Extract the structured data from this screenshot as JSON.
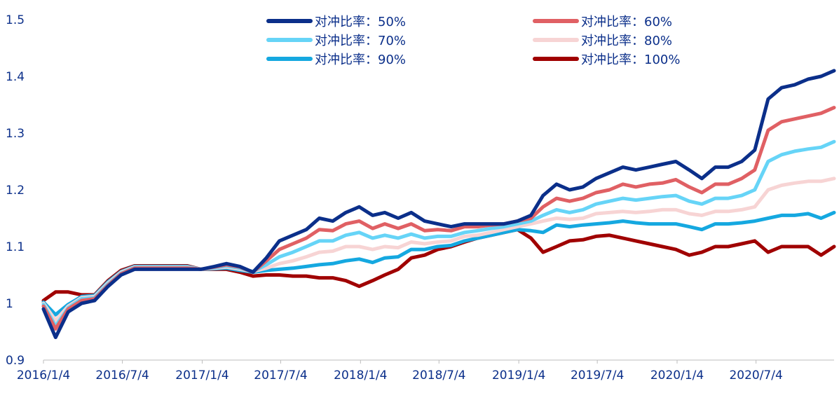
{
  "chart_data": {
    "type": "line",
    "title": "",
    "xlabel": "",
    "ylabel": "",
    "ylim": [
      0.9,
      1.5
    ],
    "yticks": [
      "0.9",
      "1",
      "1.1",
      "1.2",
      "1.3",
      "1.4",
      "1.5"
    ],
    "xlim": [
      "2016-01-04",
      "2020-12-31"
    ],
    "xticks": [
      {
        "date": "2016-01-04",
        "label": "2016/1/4"
      },
      {
        "date": "2016-07-04",
        "label": "2016/7/4"
      },
      {
        "date": "2017-01-04",
        "label": "2017/1/4"
      },
      {
        "date": "2017-07-04",
        "label": "2017/7/4"
      },
      {
        "date": "2018-01-04",
        "label": "2018/1/4"
      },
      {
        "date": "2018-07-04",
        "label": "2018/7/4"
      },
      {
        "date": "2019-01-04",
        "label": "2019/1/4"
      },
      {
        "date": "2019-07-04",
        "label": "2019/7/4"
      },
      {
        "date": "2020-01-04",
        "label": "2020/1/4"
      },
      {
        "date": "2020-07-04",
        "label": "2020/7/4"
      }
    ],
    "legend_position": "top",
    "grid": false,
    "x": [
      "2016-01-04",
      "2016-02-01",
      "2016-03-01",
      "2016-04-01",
      "2016-05-01",
      "2016-06-01",
      "2016-07-01",
      "2016-08-01",
      "2016-09-01",
      "2016-10-01",
      "2016-11-01",
      "2016-12-01",
      "2017-01-01",
      "2017-02-01",
      "2017-03-01",
      "2017-04-01",
      "2017-05-01",
      "2017-06-01",
      "2017-07-01",
      "2017-08-01",
      "2017-09-01",
      "2017-10-01",
      "2017-11-01",
      "2017-12-01",
      "2018-01-01",
      "2018-02-01",
      "2018-03-01",
      "2018-04-01",
      "2018-05-01",
      "2018-06-01",
      "2018-07-01",
      "2018-08-01",
      "2018-09-01",
      "2018-10-01",
      "2018-11-01",
      "2018-12-01",
      "2019-01-01",
      "2019-02-01",
      "2019-03-01",
      "2019-04-01",
      "2019-05-01",
      "2019-06-01",
      "2019-07-01",
      "2019-08-01",
      "2019-09-01",
      "2019-10-01",
      "2019-11-01",
      "2019-12-01",
      "2020-01-01",
      "2020-02-01",
      "2020-03-01",
      "2020-04-01",
      "2020-05-01",
      "2020-06-01",
      "2020-07-01",
      "2020-08-01",
      "2020-09-01",
      "2020-10-01",
      "2020-11-01",
      "2020-12-01",
      "2020-12-31"
    ],
    "series": [
      {
        "name": "对冲比率：50%",
        "color": "#0b2f8a",
        "values": [
          0.99,
          0.94,
          0.985,
          1.0,
          1.005,
          1.03,
          1.05,
          1.06,
          1.06,
          1.06,
          1.06,
          1.06,
          1.06,
          1.065,
          1.07,
          1.065,
          1.055,
          1.08,
          1.11,
          1.12,
          1.13,
          1.15,
          1.145,
          1.16,
          1.17,
          1.155,
          1.16,
          1.15,
          1.16,
          1.145,
          1.14,
          1.135,
          1.14,
          1.14,
          1.14,
          1.14,
          1.145,
          1.155,
          1.19,
          1.21,
          1.2,
          1.205,
          1.22,
          1.23,
          1.24,
          1.235,
          1.24,
          1.245,
          1.25,
          1.235,
          1.22,
          1.24,
          1.24,
          1.25,
          1.27,
          1.36,
          1.38,
          1.385,
          1.395,
          1.4,
          1.41
        ]
      },
      {
        "name": "对冲比率：60%",
        "color": "#e06064",
        "values": [
          0.995,
          0.955,
          0.99,
          1.005,
          1.008,
          1.032,
          1.052,
          1.062,
          1.062,
          1.062,
          1.062,
          1.062,
          1.06,
          1.064,
          1.068,
          1.064,
          1.055,
          1.075,
          1.095,
          1.105,
          1.115,
          1.13,
          1.128,
          1.14,
          1.145,
          1.132,
          1.14,
          1.132,
          1.14,
          1.128,
          1.13,
          1.128,
          1.135,
          1.135,
          1.138,
          1.14,
          1.145,
          1.15,
          1.17,
          1.185,
          1.18,
          1.185,
          1.195,
          1.2,
          1.21,
          1.205,
          1.21,
          1.212,
          1.218,
          1.205,
          1.195,
          1.21,
          1.21,
          1.22,
          1.235,
          1.305,
          1.32,
          1.325,
          1.33,
          1.335,
          1.345
        ]
      },
      {
        "name": "对冲比率：70%",
        "color": "#66d4f7",
        "values": [
          0.998,
          0.96,
          0.992,
          1.008,
          1.01,
          1.034,
          1.053,
          1.063,
          1.063,
          1.063,
          1.063,
          1.063,
          1.06,
          1.063,
          1.066,
          1.062,
          1.056,
          1.068,
          1.082,
          1.09,
          1.1,
          1.11,
          1.11,
          1.12,
          1.125,
          1.115,
          1.12,
          1.115,
          1.122,
          1.115,
          1.118,
          1.118,
          1.125,
          1.128,
          1.132,
          1.135,
          1.14,
          1.145,
          1.155,
          1.165,
          1.16,
          1.165,
          1.175,
          1.18,
          1.185,
          1.182,
          1.185,
          1.188,
          1.19,
          1.18,
          1.175,
          1.185,
          1.185,
          1.19,
          1.2,
          1.25,
          1.262,
          1.268,
          1.272,
          1.275,
          1.285
        ]
      },
      {
        "name": "对冲比率：80%",
        "color": "#f7d4d4",
        "values": [
          1.0,
          0.97,
          0.995,
          1.01,
          1.012,
          1.036,
          1.055,
          1.064,
          1.064,
          1.064,
          1.064,
          1.064,
          1.06,
          1.062,
          1.064,
          1.06,
          1.056,
          1.062,
          1.07,
          1.075,
          1.082,
          1.09,
          1.092,
          1.1,
          1.1,
          1.095,
          1.1,
          1.098,
          1.108,
          1.105,
          1.108,
          1.11,
          1.118,
          1.12,
          1.125,
          1.13,
          1.135,
          1.14,
          1.145,
          1.15,
          1.148,
          1.15,
          1.158,
          1.16,
          1.162,
          1.16,
          1.162,
          1.165,
          1.165,
          1.158,
          1.155,
          1.162,
          1.162,
          1.165,
          1.17,
          1.2,
          1.208,
          1.212,
          1.215,
          1.215,
          1.22
        ]
      },
      {
        "name": "对冲比率：90%",
        "color": "#15a8e0",
        "values": [
          1.002,
          0.98,
          0.998,
          1.012,
          1.014,
          1.038,
          1.056,
          1.065,
          1.065,
          1.065,
          1.065,
          1.065,
          1.06,
          1.061,
          1.062,
          1.058,
          1.055,
          1.058,
          1.06,
          1.062,
          1.065,
          1.068,
          1.07,
          1.075,
          1.078,
          1.072,
          1.08,
          1.082,
          1.095,
          1.095,
          1.1,
          1.102,
          1.11,
          1.115,
          1.12,
          1.125,
          1.13,
          1.128,
          1.125,
          1.138,
          1.135,
          1.138,
          1.14,
          1.142,
          1.145,
          1.142,
          1.14,
          1.14,
          1.14,
          1.135,
          1.13,
          1.14,
          1.14,
          1.142,
          1.145,
          1.15,
          1.155,
          1.155,
          1.158,
          1.15,
          1.16
        ]
      },
      {
        "name": "对冲比率：100%",
        "color": "#a00000",
        "values": [
          1.005,
          1.02,
          1.02,
          1.015,
          1.015,
          1.04,
          1.058,
          1.066,
          1.066,
          1.066,
          1.066,
          1.066,
          1.06,
          1.06,
          1.06,
          1.055,
          1.048,
          1.05,
          1.05,
          1.048,
          1.048,
          1.045,
          1.045,
          1.04,
          1.03,
          1.04,
          1.05,
          1.06,
          1.08,
          1.085,
          1.095,
          1.1,
          1.108,
          1.115,
          1.12,
          1.125,
          1.13,
          1.115,
          1.09,
          1.1,
          1.11,
          1.112,
          1.118,
          1.12,
          1.115,
          1.11,
          1.105,
          1.1,
          1.095,
          1.085,
          1.09,
          1.1,
          1.1,
          1.105,
          1.11,
          1.09,
          1.1,
          1.1,
          1.1,
          1.085,
          1.1
        ]
      }
    ]
  }
}
